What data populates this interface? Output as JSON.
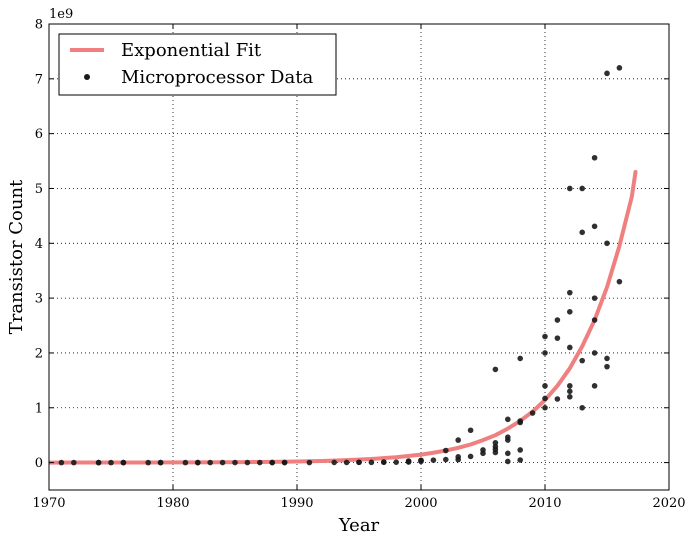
{
  "chart_data": {
    "type": "scatter",
    "xlabel": "Year",
    "ylabel": "Transistor Count",
    "xlim": [
      1970,
      2020
    ],
    "ylim": [
      -0.5,
      8
    ],
    "y_multiplier_label": "1e9",
    "x_ticks": [
      1970,
      1980,
      1990,
      2000,
      2010,
      2020
    ],
    "x_tick_labels": [
      "1970",
      "1980",
      "1990",
      "2000",
      "2010",
      "2020"
    ],
    "y_ticks": [
      0,
      1,
      2,
      3,
      4,
      5,
      6,
      7,
      8
    ],
    "y_tick_labels": [
      "0",
      "1",
      "2",
      "3",
      "4",
      "5",
      "6",
      "7",
      "8"
    ],
    "grid": true,
    "legend_position": "top-left",
    "series": [
      {
        "name": "Exponential Fit",
        "kind": "line",
        "color": "#f08080",
        "x": [
          1970,
          1972,
          1974,
          1976,
          1978,
          1980,
          1982,
          1984,
          1986,
          1988,
          1990,
          1992,
          1994,
          1996,
          1998,
          2000,
          2001,
          2002,
          2003,
          2004,
          2005,
          2006,
          2007,
          2008,
          2009,
          2010,
          2011,
          2012,
          2013,
          2014,
          2015,
          2016,
          2017,
          2017.3
        ],
        "y": [
          0.0004,
          0.0006,
          0.0009,
          0.0013,
          0.0019,
          0.0028,
          0.0042,
          0.0062,
          0.0092,
          0.0137,
          0.0202,
          0.03,
          0.0445,
          0.066,
          0.098,
          0.145,
          0.18,
          0.22,
          0.27,
          0.33,
          0.41,
          0.5,
          0.62,
          0.76,
          0.93,
          1.14,
          1.4,
          1.72,
          2.12,
          2.6,
          3.2,
          3.95,
          4.85,
          5.3
        ]
      },
      {
        "name": "Microprocessor Data",
        "kind": "scatter",
        "color": "#1a1a1a",
        "points": [
          [
            1971,
            2.3e-06
          ],
          [
            1972,
            3.5e-06
          ],
          [
            1974,
            5e-06
          ],
          [
            1974,
            4.5e-06
          ],
          [
            1975,
            4e-06
          ],
          [
            1976,
            6.5e-06
          ],
          [
            1976,
            8.5e-06
          ],
          [
            1978,
            2.9e-05
          ],
          [
            1979,
            2.9e-05
          ],
          [
            1979,
            6.8e-05
          ],
          [
            1981,
            2e-05
          ],
          [
            1982,
            0.000134
          ],
          [
            1982,
            5.5e-05
          ],
          [
            1983,
            6e-05
          ],
          [
            1984,
            0.00019
          ],
          [
            1985,
            0.00027
          ],
          [
            1986,
            0.0003
          ],
          [
            1987,
            0.00055
          ],
          [
            1988,
            0.00025
          ],
          [
            1988,
            0.0003
          ],
          [
            1989,
            0.0012
          ],
          [
            1989,
            0.001
          ],
          [
            1991,
            0.0013
          ],
          [
            1993,
            0.0031
          ],
          [
            1994,
            0.0025
          ],
          [
            1995,
            0.0055
          ],
          [
            1995,
            0.0063
          ],
          [
            1996,
            0.0043
          ],
          [
            1997,
            0.0075
          ],
          [
            1997,
            0.0088
          ],
          [
            1998,
            0.0076
          ],
          [
            1999,
            0.0095
          ],
          [
            1999,
            0.022
          ],
          [
            1999,
            0.028
          ],
          [
            2000,
            0.021
          ],
          [
            2000,
            0.037
          ],
          [
            2000,
            0.042
          ],
          [
            2001,
            0.045
          ],
          [
            2002,
            0.055
          ],
          [
            2002,
            0.22
          ],
          [
            2003,
            0.105
          ],
          [
            2003,
            0.41
          ],
          [
            2003,
            0.054
          ],
          [
            2004,
            0.112
          ],
          [
            2004,
            0.59
          ],
          [
            2005,
            0.169
          ],
          [
            2005,
            0.23
          ],
          [
            2006,
            0.291
          ],
          [
            2006,
            0.241
          ],
          [
            2006,
            0.184
          ],
          [
            2006,
            0.362
          ],
          [
            2006,
            1.7
          ],
          [
            2007,
            0.789
          ],
          [
            2007,
            0.463
          ],
          [
            2007,
            0.411
          ],
          [
            2007,
            0.169
          ],
          [
            2007,
            0.021
          ],
          [
            2008,
            0.731
          ],
          [
            2008,
            1.9
          ],
          [
            2008,
            0.758
          ],
          [
            2008,
            0.23
          ],
          [
            2008,
            0.047
          ],
          [
            2009,
            0.904
          ],
          [
            2010,
            1.17
          ],
          [
            2010,
            2.3
          ],
          [
            2010,
            1.4
          ],
          [
            2010,
            1.0
          ],
          [
            2010,
            2.0
          ],
          [
            2011,
            2.27
          ],
          [
            2011,
            2.6
          ],
          [
            2011,
            1.16
          ],
          [
            2012,
            1.2
          ],
          [
            2012,
            1.4
          ],
          [
            2012,
            5.0
          ],
          [
            2012,
            1.3
          ],
          [
            2012,
            3.1
          ],
          [
            2012,
            2.75
          ],
          [
            2012,
            2.1
          ],
          [
            2013,
            4.2
          ],
          [
            2013,
            5.0
          ],
          [
            2013,
            1.86
          ],
          [
            2013,
            1.0
          ],
          [
            2014,
            4.31
          ],
          [
            2014,
            5.56
          ],
          [
            2014,
            2.6
          ],
          [
            2014,
            1.4
          ],
          [
            2014,
            3.0
          ],
          [
            2014,
            2.0
          ],
          [
            2015,
            1.9
          ],
          [
            2015,
            7.1
          ],
          [
            2015,
            4.0
          ],
          [
            2015,
            1.75
          ],
          [
            2016,
            7.2
          ],
          [
            2016,
            3.3
          ]
        ]
      }
    ]
  }
}
